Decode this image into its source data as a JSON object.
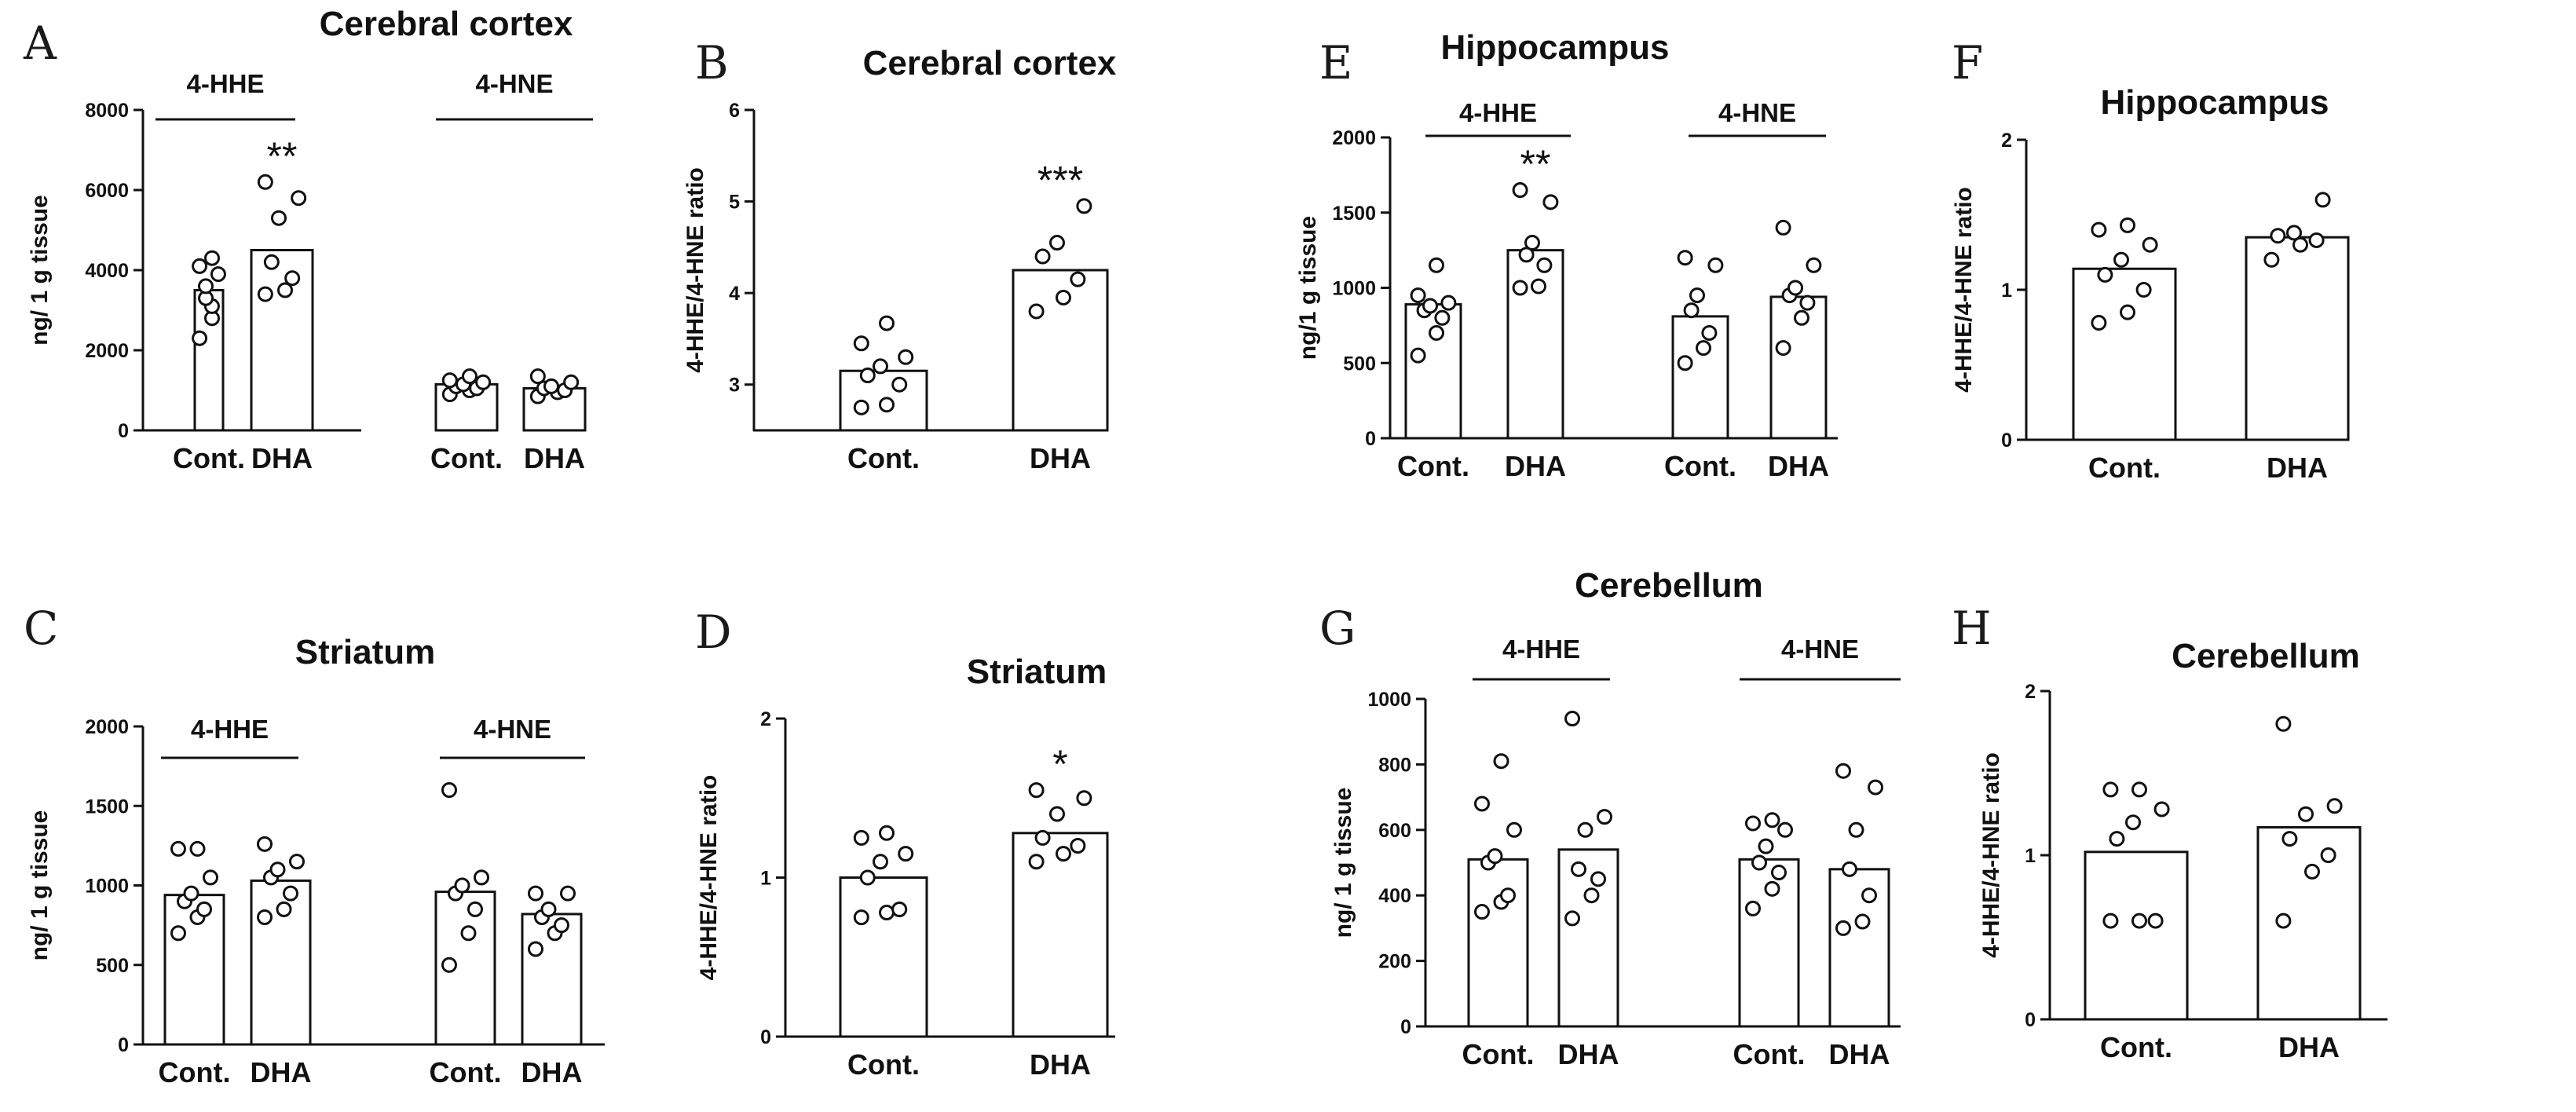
{
  "chart_data": [
    {
      "id": "A",
      "panel_label": "A",
      "type": "bar",
      "title": "Cerebral cortex",
      "ylabel": "ng/ 1 g tissue",
      "ylim": [
        0,
        8000
      ],
      "yticks": [
        0,
        2000,
        4000,
        6000,
        8000
      ],
      "groups": [
        {
          "name": "4-HHE",
          "bars": [
            {
              "category": "Cont.",
              "value": 3500,
              "points": [
                2300,
                2800,
                3100,
                3300,
                3600,
                3900,
                4100,
                4300
              ],
              "sig": ""
            },
            {
              "category": "DHA",
              "value": 4500,
              "points": [
                3400,
                3500,
                3800,
                4200,
                5300,
                5800,
                6200
              ],
              "sig": "**"
            }
          ]
        },
        {
          "name": "4-HNE",
          "bars": [
            {
              "category": "Cont.",
              "value": 1150,
              "points": [
                900,
                1000,
                1050,
                1100,
                1150,
                1200,
                1250,
                1350
              ],
              "sig": ""
            },
            {
              "category": "DHA",
              "value": 1050,
              "points": [
                850,
                950,
                1000,
                1050,
                1100,
                1200,
                1350
              ],
              "sig": ""
            }
          ]
        }
      ]
    },
    {
      "id": "B",
      "panel_label": "B",
      "type": "bar",
      "title": "Cerebral cortex",
      "ylabel": "4-HHE/4-HNE ratio",
      "ylim": [
        2.5,
        6
      ],
      "yticks": [
        3,
        4,
        5,
        6
      ],
      "groups": [
        {
          "name": "",
          "bars": [
            {
              "category": "Cont.",
              "value": 3.15,
              "points": [
                2.75,
                2.78,
                3.0,
                3.1,
                3.2,
                3.3,
                3.45,
                3.67
              ],
              "sig": ""
            },
            {
              "category": "DHA",
              "value": 4.25,
              "points": [
                3.8,
                3.95,
                4.15,
                4.4,
                4.55,
                4.95
              ],
              "sig": "***"
            }
          ]
        }
      ]
    },
    {
      "id": "E",
      "panel_label": "E",
      "type": "bar",
      "title": "Hippocampus",
      "ylabel": "ng/1 g tissue",
      "ylim": [
        0,
        2000
      ],
      "yticks": [
        0,
        500,
        1000,
        1500,
        2000
      ],
      "groups": [
        {
          "name": "4-HHE",
          "bars": [
            {
              "category": "Cont.",
              "value": 890,
              "points": [
                550,
                700,
                800,
                850,
                880,
                900,
                950,
                1150
              ],
              "sig": ""
            },
            {
              "category": "DHA",
              "value": 1250,
              "points": [
                1000,
                1010,
                1150,
                1220,
                1300,
                1570,
                1650
              ],
              "sig": "**"
            }
          ]
        },
        {
          "name": "4-HNE",
          "bars": [
            {
              "category": "Cont.",
              "value": 810,
              "points": [
                500,
                600,
                700,
                850,
                950,
                1150,
                1200
              ],
              "sig": ""
            },
            {
              "category": "DHA",
              "value": 940,
              "points": [
                600,
                800,
                900,
                950,
                1000,
                1150,
                1400
              ],
              "sig": ""
            }
          ]
        }
      ]
    },
    {
      "id": "F",
      "panel_label": "F",
      "type": "bar",
      "title": "Hippocampus",
      "ylabel": "4-HHE/4-HNE ratio",
      "ylim": [
        0,
        2
      ],
      "yticks": [
        0,
        1,
        2
      ],
      "groups": [
        {
          "name": "",
          "bars": [
            {
              "category": "Cont.",
              "value": 1.14,
              "points": [
                0.78,
                0.85,
                1.0,
                1.1,
                1.2,
                1.3,
                1.4,
                1.43
              ],
              "sig": ""
            },
            {
              "category": "DHA",
              "value": 1.35,
              "points": [
                1.2,
                1.3,
                1.33,
                1.36,
                1.38,
                1.6
              ],
              "sig": ""
            }
          ]
        }
      ]
    },
    {
      "id": "C",
      "panel_label": "C",
      "type": "bar",
      "title": "Striatum",
      "ylabel": "ng/ 1 g tissue",
      "ylim": [
        0,
        2000
      ],
      "yticks": [
        0,
        500,
        1000,
        1500,
        2000
      ],
      "groups": [
        {
          "name": "4-HHE",
          "bars": [
            {
              "category": "Cont.",
              "value": 940,
              "points": [
                700,
                800,
                850,
                900,
                950,
                1050,
                1230,
                1230
              ],
              "sig": ""
            },
            {
              "category": "DHA",
              "value": 1030,
              "points": [
                800,
                850,
                950,
                1050,
                1100,
                1150,
                1260
              ],
              "sig": ""
            }
          ]
        },
        {
          "name": "4-HNE",
          "bars": [
            {
              "category": "Cont.",
              "value": 960,
              "points": [
                500,
                700,
                850,
                950,
                1000,
                1050,
                1600
              ],
              "sig": ""
            },
            {
              "category": "DHA",
              "value": 820,
              "points": [
                600,
                700,
                750,
                800,
                850,
                950,
                950
              ],
              "sig": ""
            }
          ]
        }
      ]
    },
    {
      "id": "D",
      "panel_label": "D",
      "type": "bar",
      "title": "Striatum",
      "ylabel": "4-HHE/4-HNE ratio",
      "ylim": [
        0,
        2
      ],
      "yticks": [
        0,
        1,
        2
      ],
      "groups": [
        {
          "name": "",
          "bars": [
            {
              "category": "Cont.",
              "value": 1.0,
              "points": [
                0.75,
                0.78,
                0.8,
                1.0,
                1.1,
                1.15,
                1.25,
                1.28
              ],
              "sig": ""
            },
            {
              "category": "DHA",
              "value": 1.28,
              "points": [
                1.1,
                1.15,
                1.2,
                1.25,
                1.4,
                1.5,
                1.55
              ],
              "sig": "*"
            }
          ]
        }
      ]
    },
    {
      "id": "G",
      "panel_label": "G",
      "type": "bar",
      "title": "Cerebellum",
      "ylabel": "ng/ 1 g tissue",
      "ylim": [
        0,
        1000
      ],
      "yticks": [
        0,
        200,
        400,
        600,
        800,
        1000
      ],
      "groups": [
        {
          "name": "4-HHE",
          "bars": [
            {
              "category": "Cont.",
              "value": 510,
              "points": [
                350,
                380,
                400,
                500,
                520,
                600,
                680,
                810
              ],
              "sig": ""
            },
            {
              "category": "DHA",
              "value": 540,
              "points": [
                330,
                400,
                450,
                480,
                600,
                640,
                940
              ],
              "sig": ""
            }
          ]
        },
        {
          "name": "4-HNE",
          "bars": [
            {
              "category": "Cont.",
              "value": 510,
              "points": [
                360,
                420,
                470,
                500,
                550,
                600,
                620,
                630
              ],
              "sig": ""
            },
            {
              "category": "DHA",
              "value": 480,
              "points": [
                300,
                320,
                400,
                480,
                600,
                730,
                780
              ],
              "sig": ""
            }
          ]
        }
      ]
    },
    {
      "id": "H",
      "panel_label": "H",
      "type": "bar",
      "title": "Cerebellum",
      "ylabel": "4-HHE/4-HNE ratio",
      "ylim": [
        0,
        2
      ],
      "yticks": [
        0,
        1,
        2
      ],
      "groups": [
        {
          "name": "",
          "bars": [
            {
              "category": "Cont.",
              "value": 1.02,
              "points": [
                0.6,
                0.6,
                0.6,
                1.1,
                1.2,
                1.28,
                1.4,
                1.4
              ],
              "sig": ""
            },
            {
              "category": "DHA",
              "value": 1.17,
              "points": [
                0.6,
                0.9,
                1.0,
                1.1,
                1.25,
                1.3,
                1.8
              ],
              "sig": ""
            }
          ]
        }
      ]
    }
  ]
}
